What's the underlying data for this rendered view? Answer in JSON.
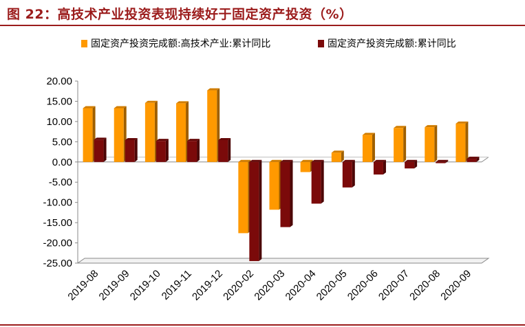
{
  "figure": {
    "title": "图 22：高技术产业投资表现持续好于固定资产投资（%）"
  },
  "chart_data": {
    "type": "bar",
    "title": "图 22：高技术产业投资表现持续好于固定资产投资（%）",
    "xlabel": "",
    "ylabel": "",
    "categories": [
      "2019-08",
      "2019-09",
      "2019-10",
      "2019-11",
      "2019-12",
      "2020-02",
      "2020-03",
      "2020-04",
      "2020-05",
      "2020-06",
      "2020-07",
      "2020-08",
      "2020-09"
    ],
    "series": [
      {
        "name": "固定资产投资完成额:高技术产业:累计同比",
        "color": "#FF9900",
        "values": [
          13.3,
          13.3,
          14.6,
          14.5,
          17.7,
          -17.6,
          -11.8,
          -2.5,
          2.3,
          6.7,
          8.4,
          8.6,
          9.5
        ]
      },
      {
        "name": "固定资产投资完成额:累计同比",
        "color": "#7B0A0A",
        "values": [
          5.5,
          5.4,
          5.2,
          5.2,
          5.4,
          -24.5,
          -16.1,
          -10.3,
          -6.3,
          -3.1,
          -1.6,
          -0.3,
          0.8
        ]
      }
    ],
    "ylim": [
      -25,
      20
    ],
    "yticks": [
      "20.00",
      "15.00",
      "10.00",
      "5.00",
      "0.00",
      "-5.00",
      "-10.00",
      "-15.00",
      "-20.00",
      "-25.00"
    ],
    "grid": false,
    "legend_position": "top"
  }
}
